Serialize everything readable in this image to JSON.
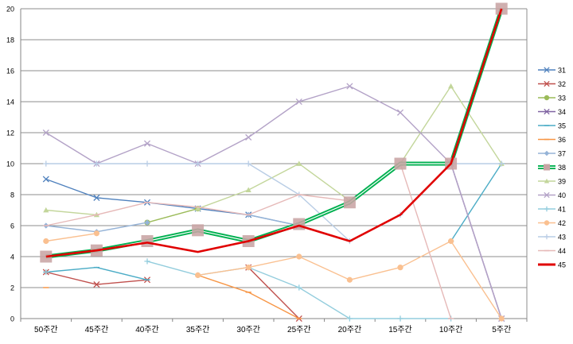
{
  "chart_data": {
    "type": "line",
    "categories": [
      "50주간",
      "45주간",
      "40주간",
      "35주간",
      "30주간",
      "25주간",
      "20주간",
      "15주간",
      "10주간",
      "5주간"
    ],
    "ylim": [
      0,
      20
    ],
    "yticks": [
      "0",
      "2",
      "4",
      "6",
      "8",
      "10",
      "12",
      "14",
      "16",
      "18",
      "20"
    ],
    "grid": "horizontal",
    "legend_position": "right",
    "series": [
      {
        "name": "31",
        "color": "#4F81BD",
        "marker": "x",
        "values": [
          9,
          7.8,
          7.5,
          7.1,
          6.7,
          6.0,
          null,
          null,
          null,
          null
        ]
      },
      {
        "name": "32",
        "color": "#C0504D",
        "marker": "x",
        "values": [
          3,
          2.2,
          2.5,
          null,
          3.3,
          0,
          null,
          null,
          null,
          null
        ]
      },
      {
        "name": "33",
        "color": "#9BBB59",
        "marker": "circle",
        "values": [
          null,
          null,
          6.2,
          7.1,
          null,
          null,
          null,
          null,
          null,
          null
        ]
      },
      {
        "name": "34",
        "color": "#8064A2",
        "marker": "x",
        "values": [
          null,
          null,
          null,
          null,
          null,
          null,
          null,
          null,
          10,
          0
        ]
      },
      {
        "name": "35",
        "color": "#4BACC6",
        "marker": "dash",
        "values": [
          3,
          3.3,
          2.5,
          null,
          3.3,
          null,
          null,
          null,
          5,
          10
        ]
      },
      {
        "name": "36",
        "color": "#F79646",
        "marker": "dash",
        "values": [
          2,
          null,
          null,
          2.8,
          1.7,
          0,
          null,
          null,
          null,
          null
        ]
      },
      {
        "name": "37",
        "color": "#95B3D7",
        "marker": "diamond",
        "values": [
          6,
          5.6,
          6.2,
          null,
          6.7,
          6.0,
          7.5,
          null,
          null,
          null
        ]
      },
      {
        "name": "38",
        "color": "#00B050",
        "marker": "square",
        "values": [
          4,
          4.4,
          5,
          5.7,
          5,
          6.1,
          7.5,
          10,
          10,
          20
        ]
      },
      {
        "name": "39",
        "color": "#C3D69B",
        "marker": "triangle",
        "values": [
          7,
          6.7,
          null,
          7.1,
          8.3,
          10,
          7.6,
          10,
          15,
          10
        ]
      },
      {
        "name": "40",
        "color": "#B3A2C7",
        "marker": "x",
        "values": [
          12,
          10,
          11.3,
          10,
          11.7,
          14,
          15,
          13.3,
          10,
          0
        ]
      },
      {
        "name": "41",
        "color": "#93CDDD",
        "marker": "plus",
        "values": [
          3,
          null,
          3.7,
          2.8,
          3.3,
          2,
          0,
          0,
          0,
          null
        ]
      },
      {
        "name": "42",
        "color": "#FAC090",
        "marker": "circle",
        "values": [
          5,
          5.5,
          null,
          2.8,
          3.3,
          4,
          2.5,
          3.3,
          5,
          0
        ]
      },
      {
        "name": "43",
        "color": "#B9CDE5",
        "marker": "plus",
        "values": [
          10,
          10,
          10,
          10,
          10,
          8,
          5,
          6.7,
          10,
          10
        ]
      },
      {
        "name": "44",
        "color": "#E6B9B8",
        "marker": "dash",
        "values": [
          6,
          6.7,
          7.5,
          7.2,
          6.7,
          8,
          7.6,
          10,
          0,
          null
        ]
      },
      {
        "name": "45",
        "color": "#E00000",
        "marker": "line",
        "values": [
          4,
          4.4,
          4.9,
          4.3,
          5,
          6.0,
          5.0,
          6.7,
          10,
          20
        ]
      }
    ]
  }
}
